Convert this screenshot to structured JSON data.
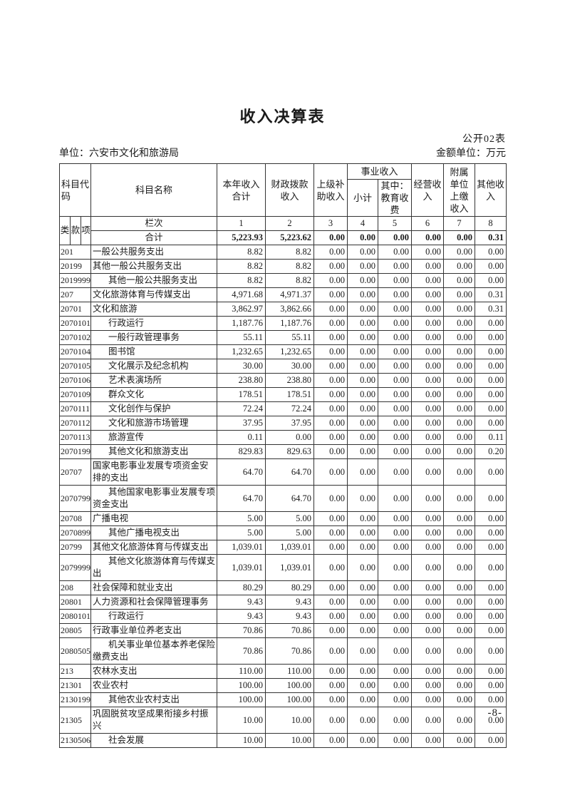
{
  "page": {
    "title": "收入决算表",
    "table_label": "公开02表",
    "unit_label": "单位：六安市文化和旅游局",
    "amount_unit_label": "金额单位：万元",
    "page_number": "-8-"
  },
  "table": {
    "columns": {
      "code": "科目代码",
      "name": "科目名称",
      "annual_total": "本年收入合计",
      "fiscal_appropriation": "财政拨款收入",
      "superior_subsidy": "上级补助收入",
      "business_income_group": "事业收入",
      "subtotal": "小计",
      "education_fees": "其中：教育收费",
      "operating_income": "经营收入",
      "affiliated_remittance": "附属单位上缴收入",
      "other_income": "其他收入"
    },
    "code_subcolumns": [
      "类",
      "款",
      "项"
    ],
    "lanci_label": "栏次",
    "column_numbers": [
      "1",
      "2",
      "3",
      "4",
      "5",
      "6",
      "7",
      "8"
    ],
    "total_row": {
      "label": "合计",
      "values": [
        "5,223.93",
        "5,223.62",
        "0.00",
        "0.00",
        "0.00",
        "0.00",
        "0.00",
        "0.31"
      ]
    },
    "rows": [
      {
        "code": "201",
        "name": "一般公共服务支出",
        "indent": false,
        "values": [
          "8.82",
          "8.82",
          "0.00",
          "0.00",
          "0.00",
          "0.00",
          "0.00",
          "0.00"
        ]
      },
      {
        "code": "20199",
        "name": "其他一般公共服务支出",
        "indent": false,
        "values": [
          "8.82",
          "8.82",
          "0.00",
          "0.00",
          "0.00",
          "0.00",
          "0.00",
          "0.00"
        ]
      },
      {
        "code": "2019999",
        "name": "其他一般公共服务支出",
        "indent": true,
        "values": [
          "8.82",
          "8.82",
          "0.00",
          "0.00",
          "0.00",
          "0.00",
          "0.00",
          "0.00"
        ]
      },
      {
        "code": "207",
        "name": "文化旅游体育与传媒支出",
        "indent": false,
        "values": [
          "4,971.68",
          "4,971.37",
          "0.00",
          "0.00",
          "0.00",
          "0.00",
          "0.00",
          "0.31"
        ]
      },
      {
        "code": "20701",
        "name": "文化和旅游",
        "indent": false,
        "values": [
          "3,862.97",
          "3,862.66",
          "0.00",
          "0.00",
          "0.00",
          "0.00",
          "0.00",
          "0.31"
        ]
      },
      {
        "code": "2070101",
        "name": "行政运行",
        "indent": true,
        "values": [
          "1,187.76",
          "1,187.76",
          "0.00",
          "0.00",
          "0.00",
          "0.00",
          "0.00",
          "0.00"
        ]
      },
      {
        "code": "2070102",
        "name": "一般行政管理事务",
        "indent": true,
        "values": [
          "55.11",
          "55.11",
          "0.00",
          "0.00",
          "0.00",
          "0.00",
          "0.00",
          "0.00"
        ]
      },
      {
        "code": "2070104",
        "name": "图书馆",
        "indent": true,
        "values": [
          "1,232.65",
          "1,232.65",
          "0.00",
          "0.00",
          "0.00",
          "0.00",
          "0.00",
          "0.00"
        ]
      },
      {
        "code": "2070105",
        "name": "文化展示及纪念机构",
        "indent": true,
        "values": [
          "30.00",
          "30.00",
          "0.00",
          "0.00",
          "0.00",
          "0.00",
          "0.00",
          "0.00"
        ]
      },
      {
        "code": "2070106",
        "name": "艺术表演场所",
        "indent": true,
        "values": [
          "238.80",
          "238.80",
          "0.00",
          "0.00",
          "0.00",
          "0.00",
          "0.00",
          "0.00"
        ]
      },
      {
        "code": "2070109",
        "name": "群众文化",
        "indent": true,
        "values": [
          "178.51",
          "178.51",
          "0.00",
          "0.00",
          "0.00",
          "0.00",
          "0.00",
          "0.00"
        ]
      },
      {
        "code": "2070111",
        "name": "文化创作与保护",
        "indent": true,
        "values": [
          "72.24",
          "72.24",
          "0.00",
          "0.00",
          "0.00",
          "0.00",
          "0.00",
          "0.00"
        ]
      },
      {
        "code": "2070112",
        "name": "文化和旅游市场管理",
        "indent": true,
        "values": [
          "37.95",
          "37.95",
          "0.00",
          "0.00",
          "0.00",
          "0.00",
          "0.00",
          "0.00"
        ]
      },
      {
        "code": "2070113",
        "name": "旅游宣传",
        "indent": true,
        "values": [
          "0.11",
          "0.00",
          "0.00",
          "0.00",
          "0.00",
          "0.00",
          "0.00",
          "0.11"
        ]
      },
      {
        "code": "2070199",
        "name": "其他文化和旅游支出",
        "indent": true,
        "values": [
          "829.83",
          "829.63",
          "0.00",
          "0.00",
          "0.00",
          "0.00",
          "0.00",
          "0.20"
        ]
      },
      {
        "code": "20707",
        "name": "国家电影事业发展专项资金安排的支出",
        "indent": false,
        "values": [
          "64.70",
          "64.70",
          "0.00",
          "0.00",
          "0.00",
          "0.00",
          "0.00",
          "0.00"
        ]
      },
      {
        "code": "2070799",
        "name": "其他国家电影事业发展专项资金支出",
        "indent": true,
        "values": [
          "64.70",
          "64.70",
          "0.00",
          "0.00",
          "0.00",
          "0.00",
          "0.00",
          "0.00"
        ]
      },
      {
        "code": "20708",
        "name": "广播电视",
        "indent": false,
        "values": [
          "5.00",
          "5.00",
          "0.00",
          "0.00",
          "0.00",
          "0.00",
          "0.00",
          "0.00"
        ]
      },
      {
        "code": "2070899",
        "name": "其他广播电视支出",
        "indent": true,
        "values": [
          "5.00",
          "5.00",
          "0.00",
          "0.00",
          "0.00",
          "0.00",
          "0.00",
          "0.00"
        ]
      },
      {
        "code": "20799",
        "name": "其他文化旅游体育与传媒支出",
        "indent": false,
        "values": [
          "1,039.01",
          "1,039.01",
          "0.00",
          "0.00",
          "0.00",
          "0.00",
          "0.00",
          "0.00"
        ]
      },
      {
        "code": "2079999",
        "name": "其他文化旅游体育与传媒支出",
        "indent": true,
        "values": [
          "1,039.01",
          "1,039.01",
          "0.00",
          "0.00",
          "0.00",
          "0.00",
          "0.00",
          "0.00"
        ]
      },
      {
        "code": "208",
        "name": "社会保障和就业支出",
        "indent": false,
        "values": [
          "80.29",
          "80.29",
          "0.00",
          "0.00",
          "0.00",
          "0.00",
          "0.00",
          "0.00"
        ]
      },
      {
        "code": "20801",
        "name": "人力资源和社会保障管理事务",
        "indent": false,
        "values": [
          "9.43",
          "9.43",
          "0.00",
          "0.00",
          "0.00",
          "0.00",
          "0.00",
          "0.00"
        ]
      },
      {
        "code": "2080101",
        "name": "行政运行",
        "indent": true,
        "values": [
          "9.43",
          "9.43",
          "0.00",
          "0.00",
          "0.00",
          "0.00",
          "0.00",
          "0.00"
        ]
      },
      {
        "code": "20805",
        "name": "行政事业单位养老支出",
        "indent": false,
        "values": [
          "70.86",
          "70.86",
          "0.00",
          "0.00",
          "0.00",
          "0.00",
          "0.00",
          "0.00"
        ]
      },
      {
        "code": "2080505",
        "name": "机关事业单位基本养老保险缴费支出",
        "indent": true,
        "values": [
          "70.86",
          "70.86",
          "0.00",
          "0.00",
          "0.00",
          "0.00",
          "0.00",
          "0.00"
        ]
      },
      {
        "code": "213",
        "name": "农林水支出",
        "indent": false,
        "values": [
          "110.00",
          "110.00",
          "0.00",
          "0.00",
          "0.00",
          "0.00",
          "0.00",
          "0.00"
        ]
      },
      {
        "code": "21301",
        "name": "农业农村",
        "indent": false,
        "values": [
          "100.00",
          "100.00",
          "0.00",
          "0.00",
          "0.00",
          "0.00",
          "0.00",
          "0.00"
        ]
      },
      {
        "code": "2130199",
        "name": "其他农业农村支出",
        "indent": true,
        "values": [
          "100.00",
          "100.00",
          "0.00",
          "0.00",
          "0.00",
          "0.00",
          "0.00",
          "0.00"
        ]
      },
      {
        "code": "21305",
        "name": "巩固脱贫攻坚成果衔接乡村振兴",
        "indent": false,
        "values": [
          "10.00",
          "10.00",
          "0.00",
          "0.00",
          "0.00",
          "0.00",
          "0.00",
          "0.00"
        ]
      },
      {
        "code": "2130506",
        "name": "社会发展",
        "indent": true,
        "values": [
          "10.00",
          "10.00",
          "0.00",
          "0.00",
          "0.00",
          "0.00",
          "0.00",
          "0.00"
        ]
      }
    ]
  }
}
